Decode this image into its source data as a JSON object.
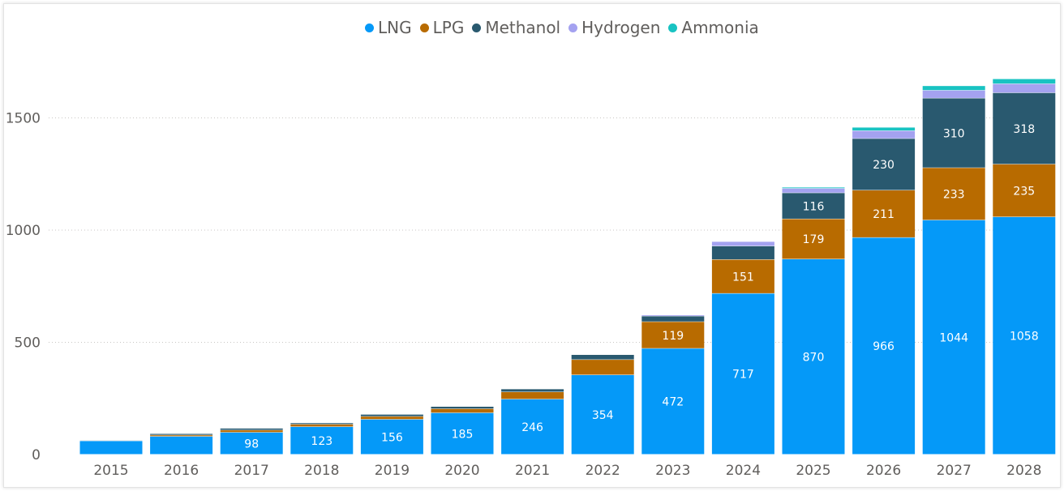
{
  "chart_data": {
    "type": "bar",
    "stacked": true,
    "categories": [
      "2015",
      "2016",
      "2017",
      "2018",
      "2019",
      "2020",
      "2021",
      "2022",
      "2023",
      "2024",
      "2025",
      "2026",
      "2027",
      "2028"
    ],
    "series": [
      {
        "name": "LNG",
        "color": "#0599F8",
        "values": [
          60,
          80,
          98,
          123,
          156,
          185,
          246,
          354,
          472,
          717,
          870,
          966,
          1044,
          1058
        ],
        "labels": [
          null,
          null,
          "98",
          "123",
          "156",
          "185",
          "246",
          "354",
          "472",
          "717",
          "870",
          "966",
          "1044",
          "1058"
        ]
      },
      {
        "name": "LPG",
        "color": "#B86B00",
        "values": [
          2,
          6,
          10,
          11,
          13,
          18,
          32,
          68,
          119,
          151,
          179,
          211,
          233,
          235
        ],
        "labels": [
          null,
          null,
          null,
          null,
          null,
          null,
          null,
          null,
          "119",
          "151",
          "179",
          "211",
          "233",
          "235"
        ]
      },
      {
        "name": "Methanol",
        "color": "#29596F",
        "values": [
          2,
          6,
          8,
          6,
          9,
          10,
          13,
          22,
          25,
          60,
          116,
          230,
          310,
          318
        ],
        "labels": [
          null,
          null,
          null,
          null,
          null,
          null,
          null,
          null,
          null,
          null,
          "116",
          "230",
          "310",
          "318"
        ]
      },
      {
        "name": "Hydrogen",
        "color": "#A4A2F0",
        "values": [
          0,
          0,
          0,
          0,
          0,
          0,
          0,
          0,
          5,
          20,
          20,
          35,
          35,
          40
        ],
        "labels": []
      },
      {
        "name": "Ammonia",
        "color": "#18C3C2",
        "values": [
          0,
          0,
          0,
          0,
          0,
          0,
          0,
          0,
          0,
          0,
          5,
          15,
          20,
          22
        ],
        "labels": []
      }
    ],
    "y_ticks": [
      "0",
      "500",
      "1000",
      "1500"
    ],
    "ylim": [
      0,
      1700
    ],
    "grid": true,
    "legend_position": "top-center",
    "title": "",
    "xlabel": "",
    "ylabel": ""
  }
}
